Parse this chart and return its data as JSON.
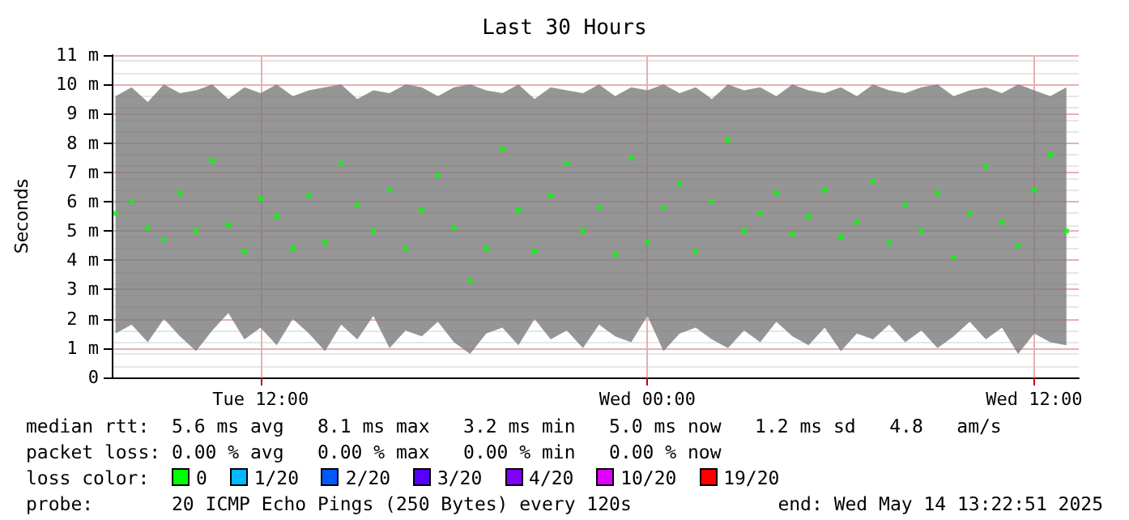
{
  "chart_data": {
    "type": "scatter",
    "title": "Last 30 Hours",
    "ylabel": "Seconds",
    "x": [
      "2025-05-13T07:30",
      "2025-05-13T08:00",
      "2025-05-13T08:30",
      "2025-05-13T09:00",
      "2025-05-13T09:30",
      "2025-05-13T10:00",
      "2025-05-13T10:30",
      "2025-05-13T11:00",
      "2025-05-13T11:30",
      "2025-05-13T12:00",
      "2025-05-13T12:30",
      "2025-05-13T13:00",
      "2025-05-13T13:30",
      "2025-05-13T14:00",
      "2025-05-13T14:30",
      "2025-05-13T15:00",
      "2025-05-13T15:30",
      "2025-05-13T16:00",
      "2025-05-13T16:30",
      "2025-05-13T17:00",
      "2025-05-13T17:30",
      "2025-05-13T18:00",
      "2025-05-13T18:30",
      "2025-05-13T19:00",
      "2025-05-13T19:30",
      "2025-05-13T20:00",
      "2025-05-13T20:30",
      "2025-05-13T21:00",
      "2025-05-13T21:30",
      "2025-05-13T22:00",
      "2025-05-13T22:30",
      "2025-05-13T23:00",
      "2025-05-13T23:30",
      "2025-05-14T00:00",
      "2025-05-14T00:30",
      "2025-05-14T01:00",
      "2025-05-14T01:30",
      "2025-05-14T02:00",
      "2025-05-14T02:30",
      "2025-05-14T03:00",
      "2025-05-14T03:30",
      "2025-05-14T04:00",
      "2025-05-14T04:30",
      "2025-05-14T05:00",
      "2025-05-14T05:30",
      "2025-05-14T06:00",
      "2025-05-14T06:30",
      "2025-05-14T07:00",
      "2025-05-14T07:30",
      "2025-05-14T08:00",
      "2025-05-14T08:30",
      "2025-05-14T09:00",
      "2025-05-14T09:30",
      "2025-05-14T10:00",
      "2025-05-14T10:30",
      "2025-05-14T11:00",
      "2025-05-14T11:30",
      "2025-05-14T12:00",
      "2025-05-14T12:30",
      "2025-05-14T13:00"
    ],
    "series": [
      {
        "color": "#00ff00",
        "values": [
          5.6,
          6.0,
          5.1,
          4.7,
          6.3,
          5.0,
          7.4,
          5.2,
          4.3,
          6.1,
          5.5,
          4.4,
          6.2,
          4.6,
          7.3,
          5.9,
          5.0,
          6.4,
          4.4,
          5.7,
          6.9,
          5.1,
          3.3,
          4.4,
          7.8,
          5.7,
          4.3,
          6.2,
          7.3,
          5.0,
          5.8,
          4.2,
          7.5,
          4.6,
          5.8,
          6.6,
          4.3,
          6.0,
          8.1,
          5.0,
          5.6,
          6.3,
          4.9,
          5.5,
          6.4,
          4.8,
          5.3,
          6.7,
          4.6,
          5.9,
          5.0,
          6.3,
          4.1,
          5.6,
          7.2,
          5.3,
          4.5,
          6.4,
          7.6,
          5.0
        ],
        "lower": [
          1.5,
          1.8,
          1.2,
          2.0,
          1.4,
          0.9,
          1.6,
          2.2,
          1.3,
          1.7,
          1.1,
          2.0,
          1.5,
          0.9,
          1.8,
          1.3,
          2.1,
          1.0,
          1.6,
          1.4,
          1.9,
          1.2,
          0.8,
          1.5,
          1.7,
          1.1,
          2.0,
          1.3,
          1.6,
          1.0,
          1.8,
          1.4,
          1.2,
          2.1,
          0.9,
          1.5,
          1.7,
          1.3,
          1.0,
          1.6,
          1.2,
          1.9,
          1.4,
          1.1,
          1.7,
          0.9,
          1.5,
          1.3,
          1.8,
          1.2,
          1.6,
          1.0,
          1.4,
          1.9,
          1.3,
          1.7,
          0.8,
          1.5,
          1.2,
          1.1
        ],
        "upper": [
          9.6,
          9.9,
          9.4,
          10.0,
          9.7,
          9.8,
          10.0,
          9.5,
          9.9,
          9.7,
          10.0,
          9.6,
          9.8,
          9.9,
          10.0,
          9.5,
          9.8,
          9.7,
          10.0,
          9.9,
          9.6,
          9.9,
          10.0,
          9.8,
          9.7,
          10.0,
          9.5,
          9.9,
          9.8,
          9.7,
          10.0,
          9.6,
          9.9,
          9.8,
          10.0,
          9.7,
          9.9,
          9.5,
          10.0,
          9.8,
          9.9,
          9.6,
          10.0,
          9.8,
          9.7,
          9.9,
          9.6,
          10.0,
          9.8,
          9.7,
          9.9,
          10.0,
          9.6,
          9.8,
          9.9,
          9.7,
          10.0,
          9.8,
          9.6,
          9.9
        ]
      }
    ],
    "xlim": [
      "2025-05-13T07:23",
      "2025-05-14T13:23"
    ],
    "xticks": [
      {
        "value": "2025-05-13T12:00",
        "label": "Tue 12:00"
      },
      {
        "value": "2025-05-14T00:00",
        "label": "Wed 00:00"
      },
      {
        "value": "2025-05-14T12:00",
        "label": "Wed 12:00"
      }
    ],
    "ylim": [
      0,
      11
    ],
    "yticks": [
      0,
      {
        "value": 1,
        "label": "1 m"
      },
      {
        "value": 2,
        "label": "2 m"
      },
      {
        "value": 3,
        "label": "3 m"
      },
      {
        "value": 4,
        "label": "4 m"
      },
      {
        "value": 5,
        "label": "5 m"
      },
      {
        "value": 6,
        "label": "6 m"
      },
      {
        "value": 7,
        "label": "7 m"
      },
      {
        "value": 8,
        "label": "8 m"
      },
      {
        "value": 9,
        "label": "9 m"
      },
      {
        "value": 10,
        "label": "10 m"
      },
      {
        "value": 11,
        "label": "11 m"
      }
    ],
    "grid": true,
    "marker": "square",
    "annotations": [
      "median rtt:  5.6 ms avg   8.1 ms max   3.2 ms min   5.0 ms now   1.2 ms sd   4.8   am/s",
      "packet loss: 0.00 % avg   0.00 % max   0.00 % min   0.00 % now",
      "loss color:",
      "0",
      "1/20",
      "2/20",
      "3/20",
      "4/20",
      "10/20",
      "19/20",
      "probe:       20 ICMP Echo Pings (250 Bytes) every 120s",
      "end: Wed May 14 13:22:51 2025"
    ]
  }
}
